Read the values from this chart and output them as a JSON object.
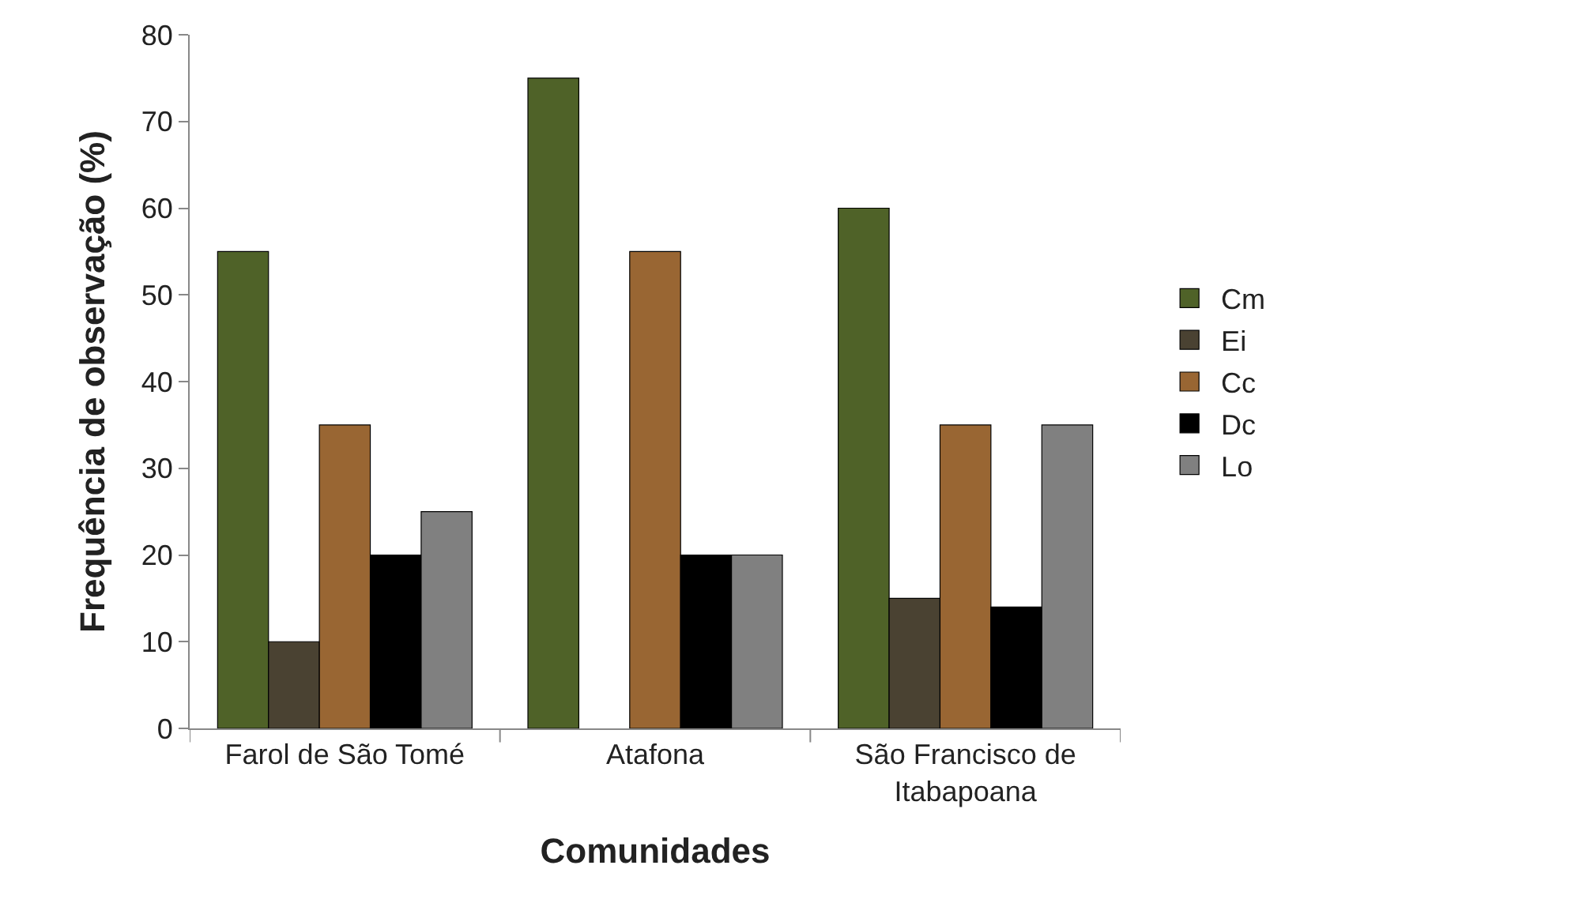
{
  "chart_data": {
    "type": "bar",
    "xlabel": "Comunidades",
    "ylabel": "Frequência de observação (%)",
    "categories": [
      "Farol de São Tomé",
      "Atafona",
      "São Francisco de Itabapoana"
    ],
    "series": [
      {
        "name": "Cm",
        "color": "#4f6228",
        "values": [
          55,
          75,
          60
        ]
      },
      {
        "name": "Ei",
        "color": "#4a4232",
        "values": [
          10,
          null,
          15
        ]
      },
      {
        "name": "Cc",
        "color": "#996633",
        "values": [
          35,
          55,
          35
        ]
      },
      {
        "name": "Dc",
        "color": "#000000",
        "values": [
          20,
          20,
          14
        ]
      },
      {
        "name": "Lo",
        "color": "#808080",
        "values": [
          25,
          20,
          35
        ]
      }
    ],
    "ylim": [
      0,
      80
    ],
    "yticks": [
      0,
      10,
      20,
      30,
      40,
      50,
      60,
      70,
      80
    ],
    "grid": false,
    "legend": "right"
  }
}
